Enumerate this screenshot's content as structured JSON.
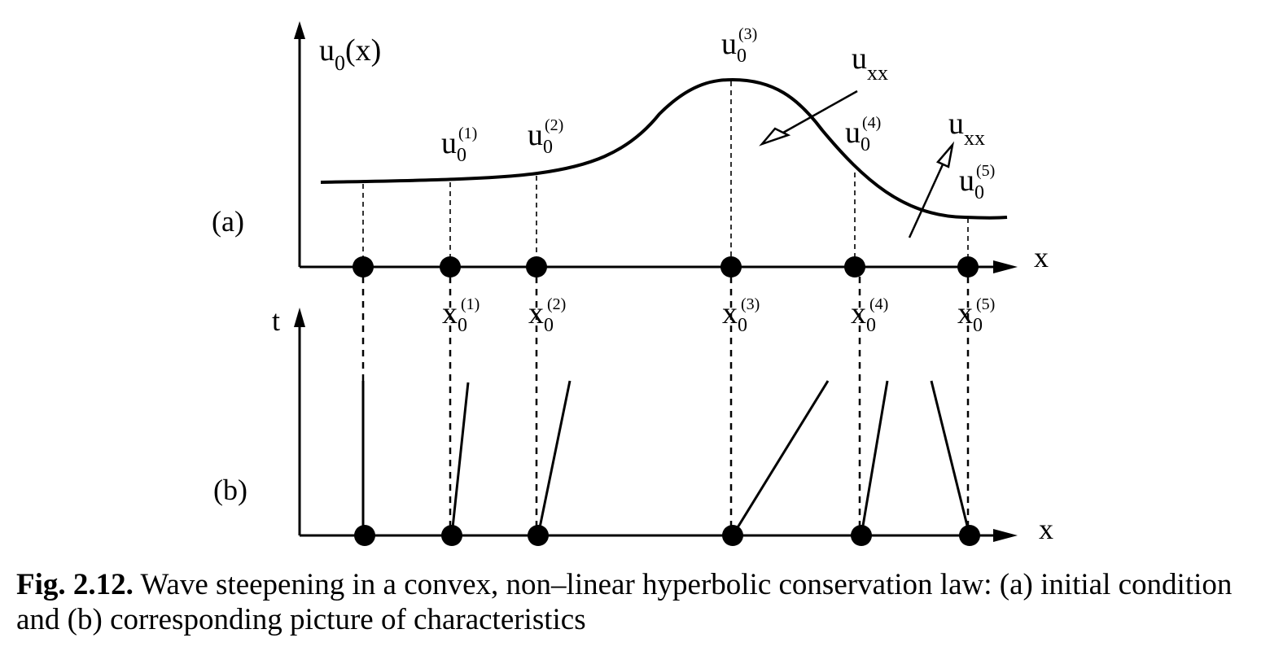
{
  "panel_a": {
    "label": "(a)",
    "y_axis_label": "u",
    "y_axis_label_sub": "0",
    "y_axis_label_arg": "(x)",
    "x_axis_label": "x",
    "curve_points": [
      {
        "base": "u",
        "sub": "0",
        "sup": "(1)"
      },
      {
        "base": "u",
        "sub": "0",
        "sup": "(2)"
      },
      {
        "base": "u",
        "sub": "0",
        "sup": "(3)"
      },
      {
        "base": "u",
        "sub": "0",
        "sup": "(4)"
      },
      {
        "base": "u",
        "sub": "0",
        "sup": "(5)"
      }
    ],
    "annotations": [
      {
        "base": "u",
        "sub": "xx"
      },
      {
        "base": "u",
        "sub": "xx"
      }
    ]
  },
  "panel_b": {
    "label": "(b)",
    "y_axis_label": "t",
    "x_axis_label": "x",
    "axis_points": [
      {
        "base": "x",
        "sub": "0",
        "sup": "(1)"
      },
      {
        "base": "x",
        "sub": "0",
        "sup": "(2)"
      },
      {
        "base": "x",
        "sub": "0",
        "sup": "(3)"
      },
      {
        "base": "x",
        "sub": "0",
        "sup": "(4)"
      },
      {
        "base": "x",
        "sub": "0",
        "sup": "(5)"
      }
    ]
  },
  "caption": {
    "label": "Fig. 2.12.",
    "text": " Wave steepening in a convex, non–linear hyperbolic conservation law: (a) initial condition and (b) corresponding picture of characteristics"
  }
}
